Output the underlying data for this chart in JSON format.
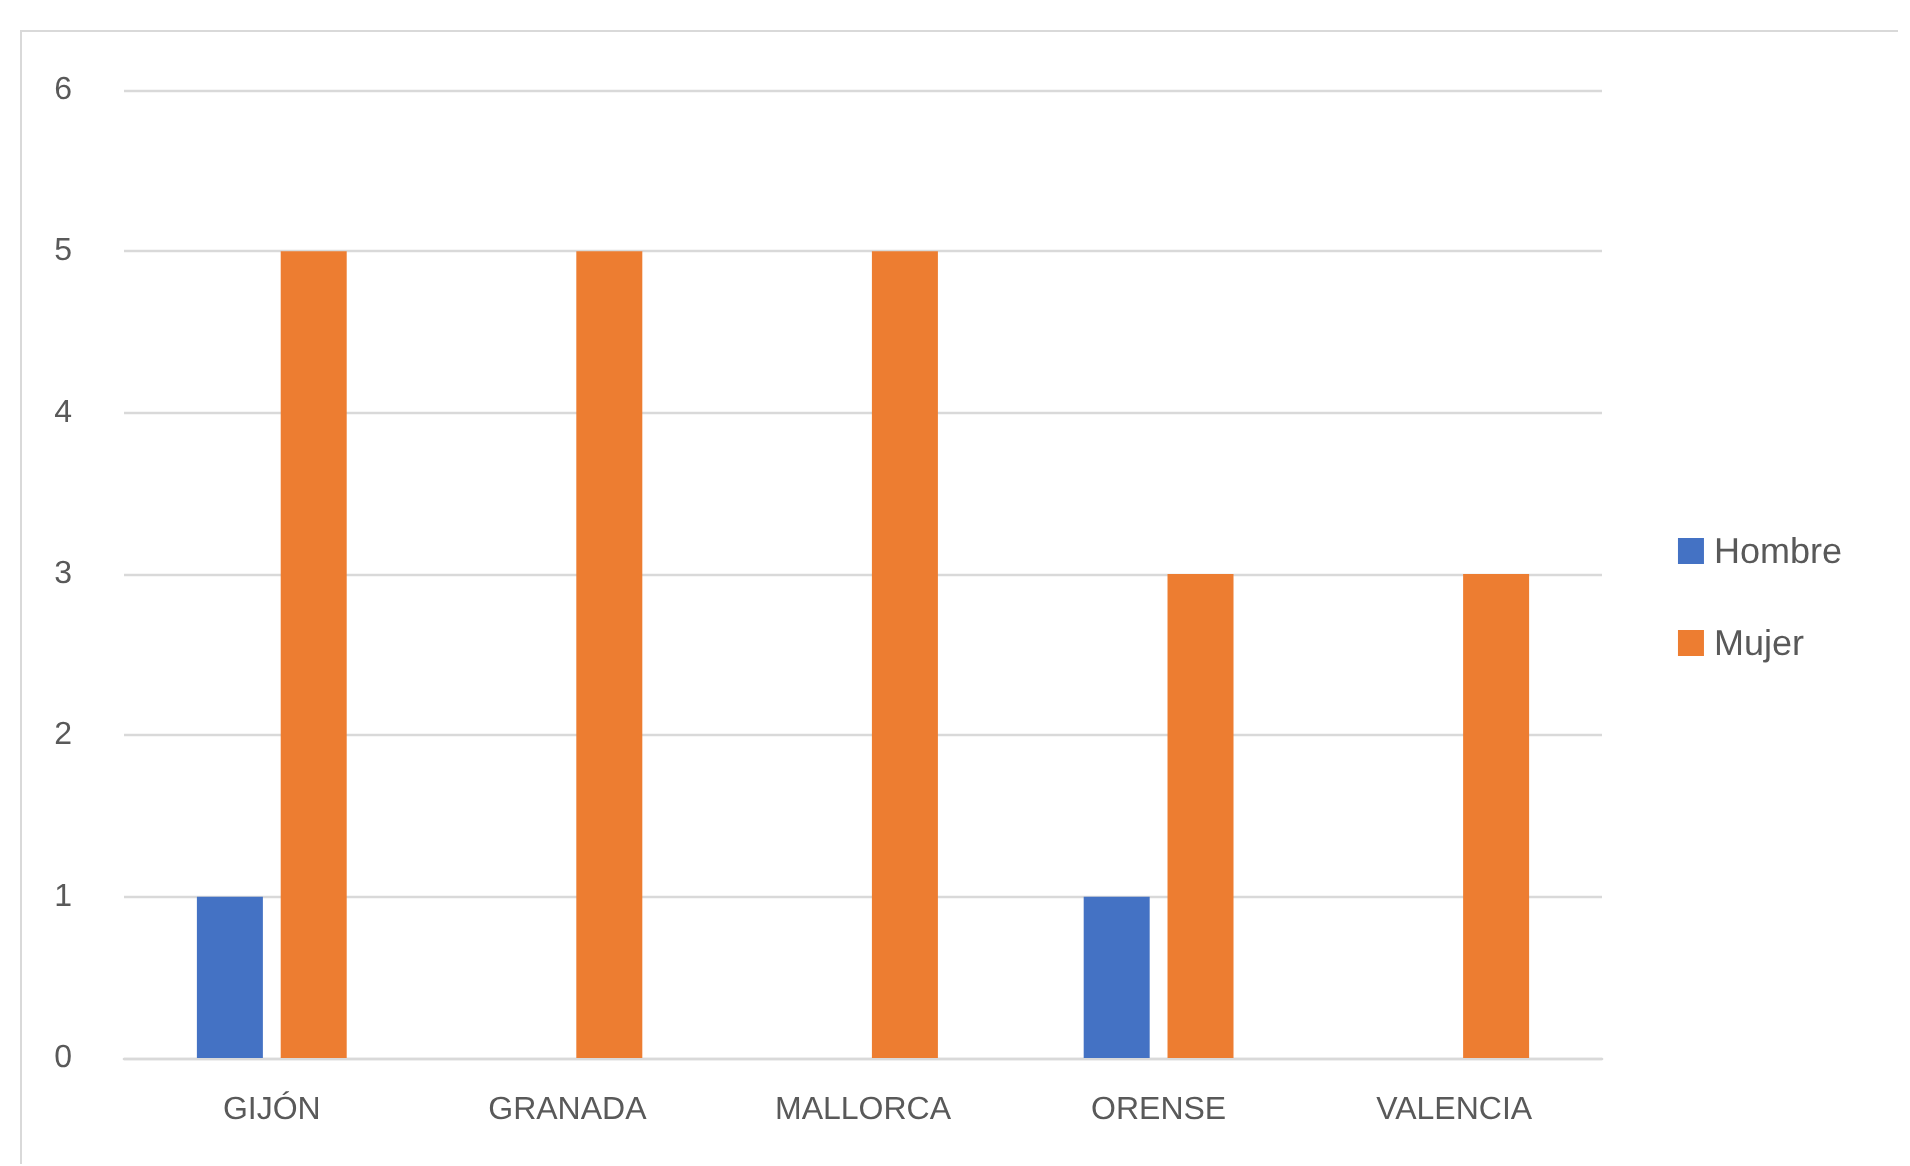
{
  "chart_data": {
    "type": "bar",
    "categories": [
      "GIJÓN",
      "GRANADA",
      "MALLORCA",
      "ORENSE",
      "VALENCIA"
    ],
    "series": [
      {
        "name": "Hombre",
        "color": "#4472c4",
        "values": [
          1,
          null,
          null,
          1,
          null
        ]
      },
      {
        "name": "Mujer",
        "color": "#ed7d31",
        "values": [
          5,
          5,
          5,
          3,
          3
        ]
      }
    ],
    "ylim": [
      0,
      6
    ],
    "yticks": [
      0,
      1,
      2,
      3,
      4,
      5,
      6
    ],
    "grid": true,
    "legend": "right"
  }
}
